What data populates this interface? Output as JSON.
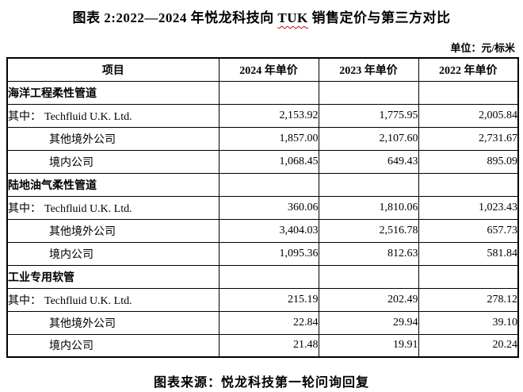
{
  "page": {
    "title_prefix": "图表 2:2022—2024 年悦龙科技向 ",
    "title_highlight": "TUK",
    "title_suffix": " 销售定价与第三方对比",
    "unit_label": "单位：元/标米",
    "source_note": "图表来源：悦龙科技第一轮问询回复"
  },
  "table": {
    "columns": [
      "项目",
      "2024 年单价",
      "2023 年单价",
      "2022 年单价"
    ],
    "sections": [
      {
        "name": "海洋工程柔性管道",
        "rows": [
          {
            "prefix": "其中：",
            "label": "Techfluid U.K. Ltd.",
            "values": [
              "2,153.92",
              "1,775.95",
              "2,005.84"
            ]
          },
          {
            "prefix": "",
            "label": "其他境外公司",
            "values": [
              "1,857.00",
              "2,107.60",
              "2,731.67"
            ]
          },
          {
            "prefix": "",
            "label": "境内公司",
            "values": [
              "1,068.45",
              "649.43",
              "895.09"
            ]
          }
        ]
      },
      {
        "name": "陆地油气柔性管道",
        "rows": [
          {
            "prefix": "其中：",
            "label": "Techfluid U.K. Ltd.",
            "values": [
              "360.06",
              "1,810.06",
              "1,023.43"
            ]
          },
          {
            "prefix": "",
            "label": "其他境外公司",
            "values": [
              "3,404.03",
              "2,516.78",
              "657.73"
            ]
          },
          {
            "prefix": "",
            "label": "境内公司",
            "values": [
              "1,095.36",
              "812.63",
              "581.84"
            ]
          }
        ]
      },
      {
        "name": "工业专用软管",
        "rows": [
          {
            "prefix": "其中：",
            "label": "Techfluid U.K. Ltd.",
            "values": [
              "215.19",
              "202.49",
              "278.12"
            ]
          },
          {
            "prefix": "",
            "label": "其他境外公司",
            "values": [
              "22.84",
              "29.94",
              "39.10"
            ]
          },
          {
            "prefix": "",
            "label": "境内公司",
            "values": [
              "21.48",
              "19.91",
              "20.24"
            ]
          }
        ]
      }
    ]
  },
  "colors": {
    "text": "#000000",
    "background": "#ffffff",
    "border": "#000000",
    "spellcheck_underline": "#cc0000"
  }
}
